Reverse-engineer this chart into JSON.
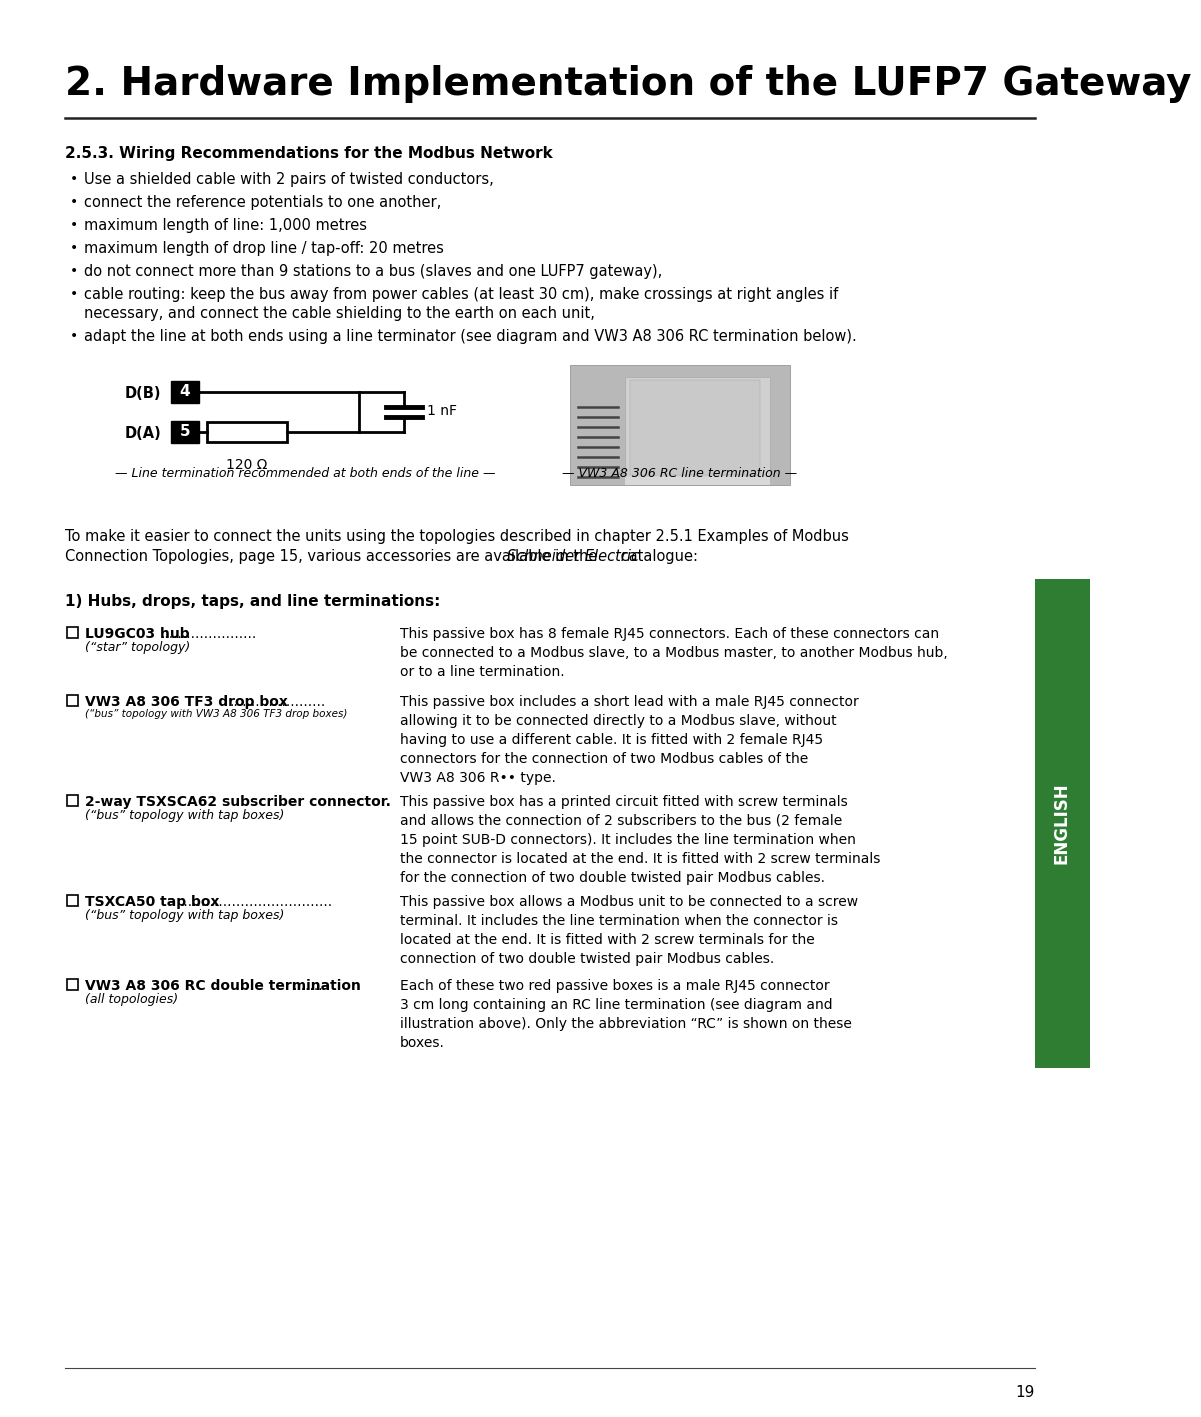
{
  "title": "2. Hardware Implementation of the LUFP7 Gateway",
  "section_title": "2.5.3. Wiring Recommendations for the Modbus Network",
  "bullets": [
    "Use a shielded cable with 2 pairs of twisted conductors,",
    "connect the reference potentials to one another,",
    "maximum length of line: 1,000 metres",
    "maximum length of drop line / tap-off: 20 metres",
    "do not connect more than 9 stations to a bus (slaves and one LUFP7 gateway),",
    "cable routing: keep the bus away from power cables (at least 30 cm), make crossings at right angles if\nnecessary, and connect the cable shielding to the earth on each unit,",
    "adapt the line at both ends using a line terminator (see diagram and VW3 A8 306 RC termination below)."
  ],
  "bullet_indent": 18,
  "bullet_text_indent": 30,
  "diagram_caption_left": "— Line termination recommended at both ends of the line —",
  "diagram_caption_right": "— VW3 A8 306 RC line termination —",
  "ohm_label": "120 Ω",
  "nf_label": "1 nF",
  "para_line1": "To make it easier to connect the units using the topologies described in chapter 2.5.1 Examples of Modbus",
  "para_line2a": "Connection Topologies, page 15, various accessories are available in the ",
  "para_line2b": "Schneider Electric",
  "para_line2c": " catalogue:",
  "section2_title": "1) Hubs, drops, taps, and line terminations:",
  "items": [
    {
      "main_bold": "LU9GC03 hub ",
      "dots": "......................",
      "sub_italic": "(“star” topology)",
      "sub_font": 9,
      "desc": "This passive box has 8 female RJ45 connectors. Each of these connectors can\nbe connected to a Modbus slave, to a Modbus master, to another Modbus hub,\nor to a line termination.",
      "desc_lines": 3
    },
    {
      "main_bold": "VW3 A8 306 TF3 drop box",
      "dots": "......................",
      "sub_italic": "(“bus” topology with VW3 A8 306 TF3 drop boxes)",
      "sub_font": 7.5,
      "desc": "This passive box includes a short lead with a male RJ45 connector\nallowing it to be connected directly to a Modbus slave, without\nhaving to use a different cable. It is fitted with 2 female RJ45\nconnectors for the connection of two Modbus cables of the\nVW3 A8 306 R•• type.",
      "desc_lines": 5
    },
    {
      "main_bold": "2-way TSXSCA62 subscriber connector.",
      "dots": "",
      "sub_italic": "(“bus” topology with tap boxes)",
      "sub_font": 9,
      "desc": "This passive box has a printed circuit fitted with screw terminals\nand allows the connection of 2 subscribers to the bus (2 female\n15 point SUB-D connectors). It includes the line termination when\nthe connector is located at the end. It is fitted with 2 screw terminals\nfor the connection of two double twisted pair Modbus cables.",
      "desc_lines": 5
    },
    {
      "main_bold": "TSXCA50 tap box",
      "dots": "...................................",
      "sub_italic": "(“bus” topology with tap boxes)",
      "sub_font": 9,
      "desc": "This passive box allows a Modbus unit to be connected to a screw\nterminal. It includes the line termination when the connector is\nlocated at the end. It is fitted with 2 screw terminals for the\nconnection of two double twisted pair Modbus cables.",
      "desc_lines": 4
    },
    {
      "main_bold": "VW3 A8 306 RC double termination ",
      "dots": ".......",
      "sub_italic": "(all topologies)",
      "sub_font": 9,
      "desc": "Each of these two red passive boxes is a male RJ45 connector\n3 cm long containing an RC line termination (see diagram and\nillustration above). Only the abbreviation “RC” is shown on these\nboxes.",
      "desc_lines": 4
    }
  ],
  "sidebar_text": "ENGLISH",
  "page_number": "19",
  "bg_color": "#ffffff",
  "text_color": "#000000",
  "sidebar_color": "#2e7d32",
  "title_fontsize": 28,
  "section_fontsize": 11,
  "body_fontsize": 10.5,
  "small_fontsize": 9,
  "item_fontsize": 10,
  "item_desc_fontsize": 10
}
